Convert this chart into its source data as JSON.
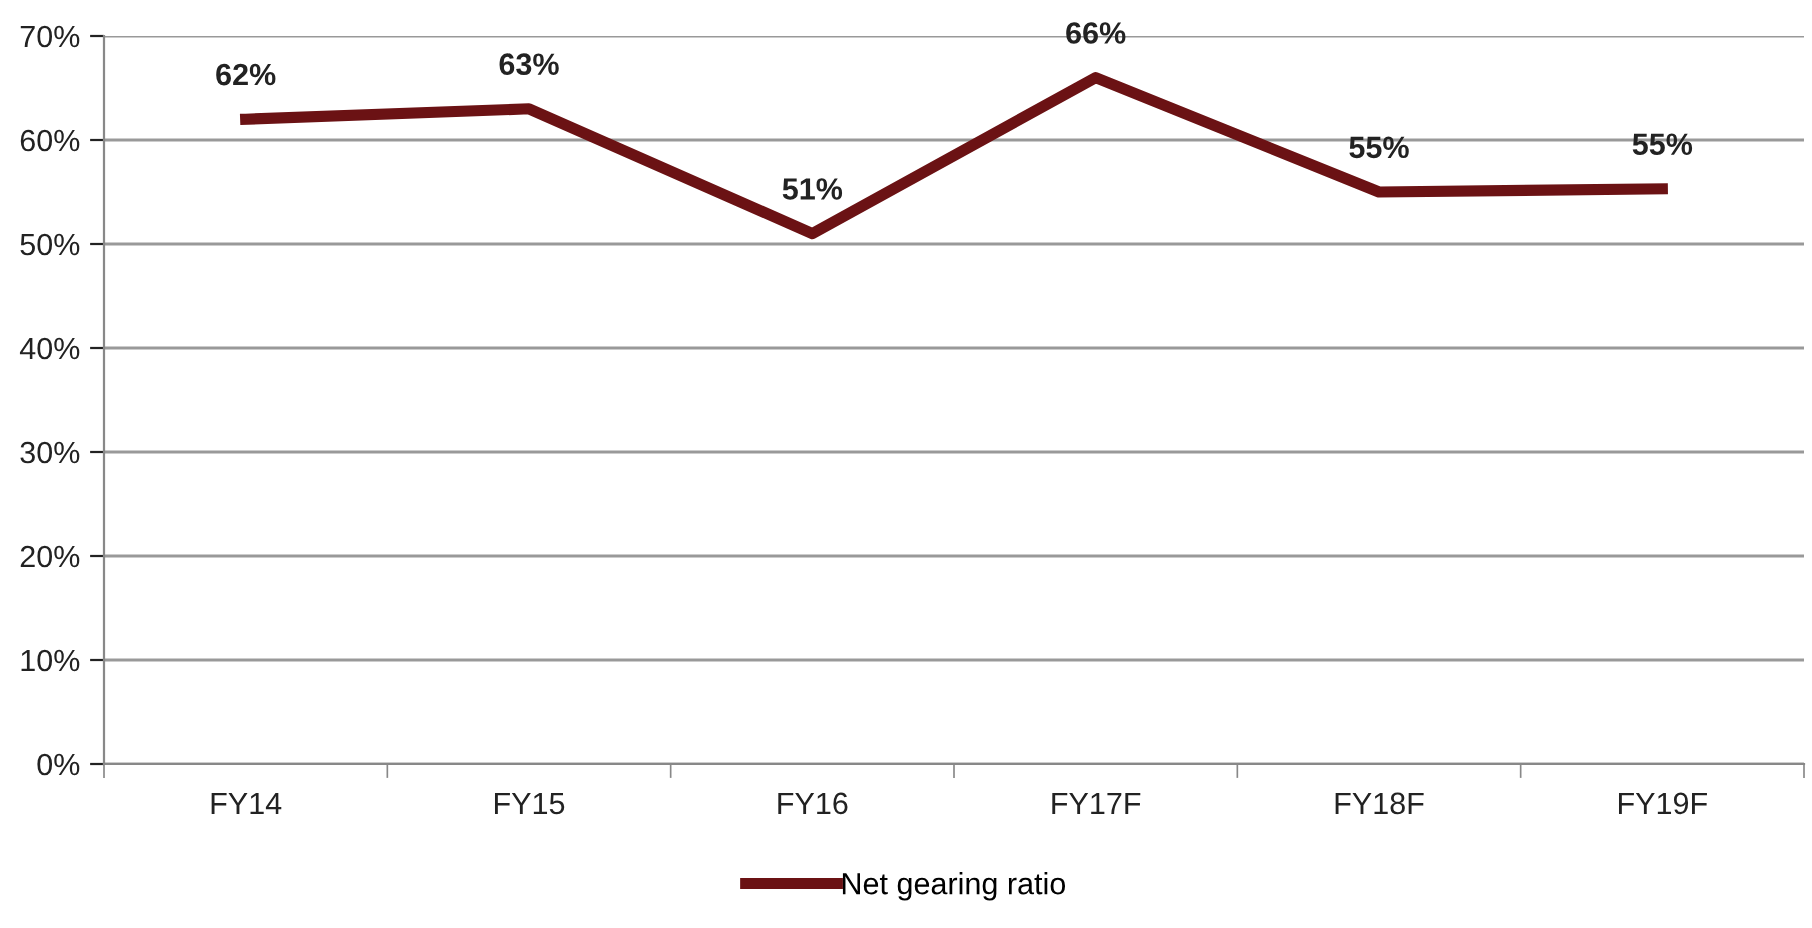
{
  "chart_data": {
    "type": "line",
    "categories": [
      "FY14",
      "FY15",
      "FY16",
      "FY17F",
      "FY18F",
      "FY19F"
    ],
    "series": [
      {
        "name": "Net gearing ratio",
        "color": "#6b1214",
        "values": [
          62,
          63,
          51,
          66,
          55,
          55.3
        ],
        "value_labels": [
          "62%",
          "63%",
          "51%",
          "66%",
          "55%",
          "55%"
        ]
      }
    ],
    "ylim": [
      0,
      70
    ],
    "yticks": [
      {
        "value": 0,
        "label": "0%"
      },
      {
        "value": 10,
        "label": "10%"
      },
      {
        "value": 20,
        "label": "20%"
      },
      {
        "value": 30,
        "label": "30%"
      },
      {
        "value": 40,
        "label": "40%"
      },
      {
        "value": 50,
        "label": "50%"
      },
      {
        "value": 60,
        "label": "60%"
      },
      {
        "value": 70,
        "label": "70%"
      }
    ],
    "grid": "y",
    "legend": "bottom",
    "marker": "none",
    "line_style": "solid"
  }
}
